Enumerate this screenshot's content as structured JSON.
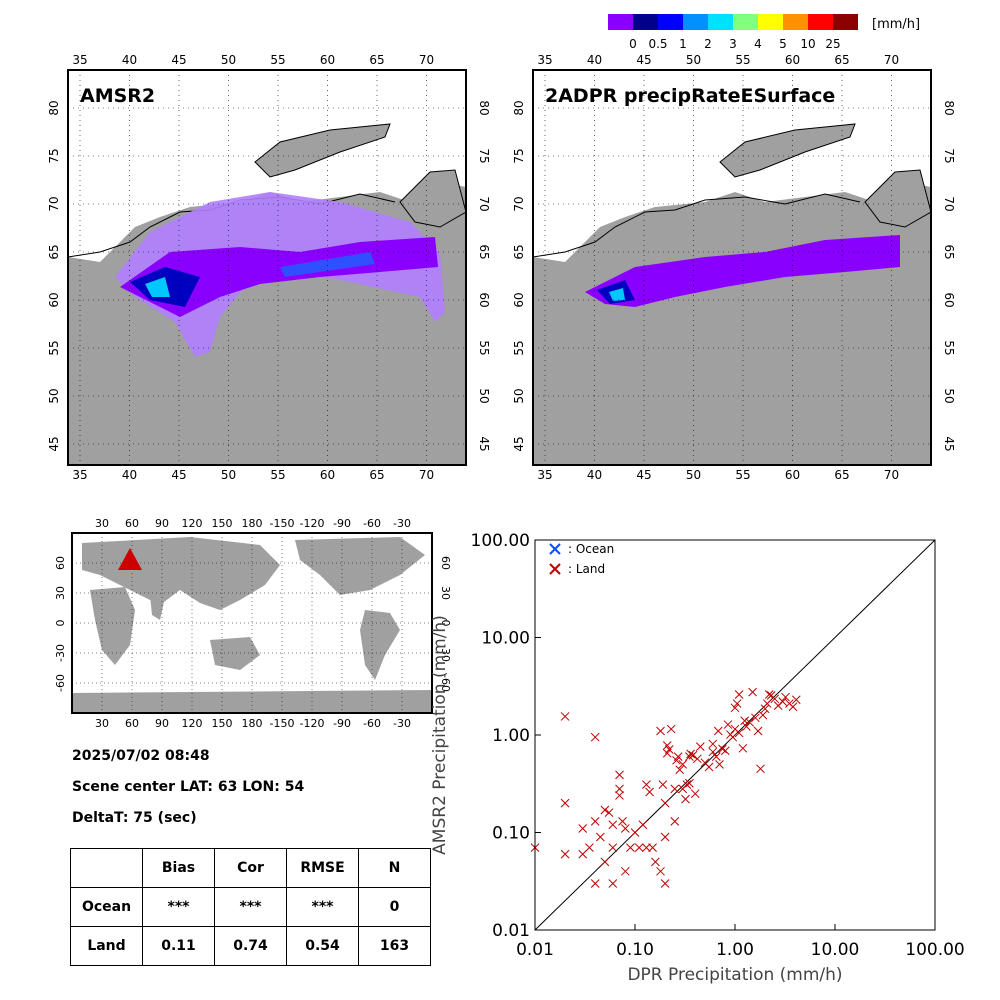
{
  "colorbar": {
    "unit": "[mm/h]",
    "colors": [
      "#8a00ff",
      "#00008c",
      "#0000ff",
      "#0090ff",
      "#00e0ff",
      "#80ff80",
      "#ffff00",
      "#ff9000",
      "#ff0000",
      "#8c0000"
    ],
    "labels": [
      "0",
      "0.5",
      "1",
      "2",
      "3",
      "4",
      "5",
      "10",
      "25"
    ]
  },
  "maps": {
    "amsr2_title": "AMSR2",
    "dpr_title": "2ADPR precipRateESurface",
    "lon_ticks": [
      "35",
      "40",
      "45",
      "50",
      "55",
      "60",
      "65",
      "70"
    ],
    "lat_ticks": [
      "45",
      "50",
      "55",
      "60",
      "65",
      "70",
      "75",
      "80"
    ],
    "land_color": "#a0a0a0",
    "ocean_color": "#ffffff"
  },
  "globe": {
    "top_ticks": [
      "30",
      "60",
      "90",
      "120",
      "150",
      "180",
      "-150",
      "-120",
      "-90",
      "-60",
      "-30"
    ],
    "lat_ticks": [
      "60",
      "30",
      "0",
      "-30",
      "-60"
    ],
    "marker_color": "#cc0000"
  },
  "info": {
    "datetime": "2025/07/02 08:48",
    "center": "Scene center LAT: 63   LON:  54",
    "deltat": "DeltaT:   75 (sec)"
  },
  "stats": {
    "headers": [
      "",
      "Bias",
      "Cor",
      "RMSE",
      "N"
    ],
    "rows": [
      [
        "Ocean",
        "***",
        "***",
        "***",
        "0"
      ],
      [
        "Land",
        "0.11",
        "0.74",
        "0.54",
        "163"
      ]
    ]
  },
  "chart_data": {
    "type": "scatter",
    "xlabel": "DPR Precipitation (mm/h)",
    "ylabel": "AMSR2 Precipitation (mm/h)",
    "xscale": "log",
    "yscale": "log",
    "xlim": [
      0.01,
      100
    ],
    "ylim": [
      0.01,
      100
    ],
    "xticks": [
      "0.01",
      "0.10",
      "1.00",
      "10.00",
      "100.00"
    ],
    "yticks": [
      "0.01",
      "0.10",
      "1.00",
      "10.00",
      "100.00"
    ],
    "legend": [
      {
        "name": "Ocean",
        "color": "#0050ff"
      },
      {
        "name": "Land",
        "color": "#c00000"
      }
    ],
    "series": [
      {
        "name": "Ocean",
        "values": []
      },
      {
        "name": "Land",
        "points": [
          [
            0.01,
            0.07
          ],
          [
            0.02,
            1.55
          ],
          [
            0.02,
            0.2
          ],
          [
            0.02,
            0.06
          ],
          [
            0.03,
            0.11
          ],
          [
            0.03,
            0.06
          ],
          [
            0.035,
            0.07
          ],
          [
            0.04,
            0.95
          ],
          [
            0.04,
            0.13
          ],
          [
            0.04,
            0.03
          ],
          [
            0.045,
            0.09
          ],
          [
            0.05,
            0.17
          ],
          [
            0.05,
            0.05
          ],
          [
            0.055,
            0.16
          ],
          [
            0.06,
            0.12
          ],
          [
            0.06,
            0.03
          ],
          [
            0.06,
            0.07
          ],
          [
            0.07,
            0.39
          ],
          [
            0.07,
            0.28
          ],
          [
            0.07,
            0.24
          ],
          [
            0.075,
            0.13
          ],
          [
            0.08,
            0.11
          ],
          [
            0.08,
            0.04
          ],
          [
            0.09,
            0.07
          ],
          [
            0.1,
            0.1
          ],
          [
            0.11,
            0.07
          ],
          [
            0.12,
            0.12
          ],
          [
            0.13,
            0.31
          ],
          [
            0.14,
            0.26
          ],
          [
            0.15,
            0.07
          ],
          [
            0.16,
            0.05
          ],
          [
            0.18,
            1.1
          ],
          [
            0.18,
            0.04
          ],
          [
            0.19,
            0.31
          ],
          [
            0.2,
            0.03
          ],
          [
            0.2,
            0.2
          ],
          [
            0.21,
            0.78
          ],
          [
            0.21,
            0.65
          ],
          [
            0.22,
            0.71
          ],
          [
            0.23,
            1.15
          ],
          [
            0.25,
            0.13
          ],
          [
            0.26,
            0.55
          ],
          [
            0.27,
            0.6
          ],
          [
            0.28,
            0.44
          ],
          [
            0.3,
            0.5
          ],
          [
            0.3,
            0.28
          ],
          [
            0.32,
            0.22
          ],
          [
            0.33,
            0.31
          ],
          [
            0.35,
            0.6
          ],
          [
            0.36,
            0.64
          ],
          [
            0.38,
            0.62
          ],
          [
            0.4,
            0.25
          ],
          [
            0.42,
            0.57
          ],
          [
            0.45,
            0.76
          ],
          [
            0.5,
            0.52
          ],
          [
            0.55,
            0.47
          ],
          [
            0.6,
            0.67
          ],
          [
            0.6,
            0.81
          ],
          [
            0.65,
            0.6
          ],
          [
            0.68,
            1.1
          ],
          [
            0.7,
            0.5
          ],
          [
            0.75,
            0.72
          ],
          [
            0.8,
            0.69
          ],
          [
            0.85,
            1.28
          ],
          [
            0.9,
            1.01
          ],
          [
            0.95,
            0.95
          ],
          [
            1.0,
            1.9
          ],
          [
            1.0,
            1.15
          ],
          [
            1.05,
            2.1
          ],
          [
            1.1,
            2.6
          ],
          [
            1.1,
            1.05
          ],
          [
            1.2,
            0.73
          ],
          [
            1.25,
            1.4
          ],
          [
            1.3,
            1.22
          ],
          [
            1.4,
            1.35
          ],
          [
            1.5,
            2.75
          ],
          [
            1.6,
            1.5
          ],
          [
            1.7,
            1.1
          ],
          [
            1.8,
            0.45
          ],
          [
            1.9,
            1.6
          ],
          [
            2.0,
            1.86
          ],
          [
            2.1,
            2.1
          ],
          [
            2.2,
            2.6
          ],
          [
            2.3,
            2.55
          ],
          [
            2.5,
            2.35
          ],
          [
            2.7,
            2.0
          ],
          [
            3.0,
            2.2
          ],
          [
            3.2,
            2.45
          ],
          [
            3.5,
            2.1
          ],
          [
            3.8,
            1.95
          ],
          [
            4.1,
            2.3
          ],
          [
            0.2,
            0.09
          ],
          [
            0.13,
            0.07
          ],
          [
            0.25,
            0.28
          ],
          [
            0.35,
            0.32
          ]
        ]
      }
    ]
  }
}
